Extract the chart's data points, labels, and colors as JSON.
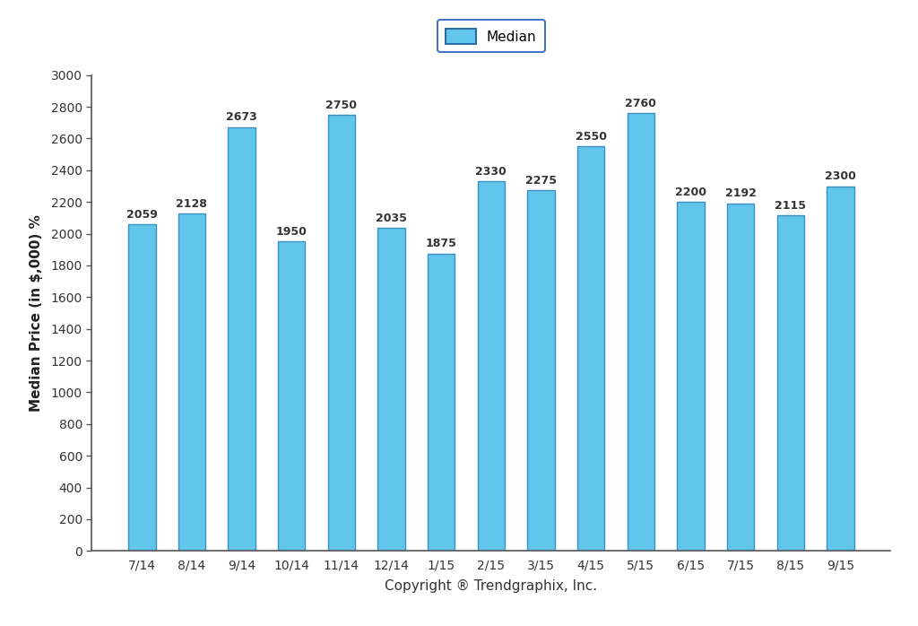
{
  "categories": [
    "7/14",
    "8/14",
    "9/14",
    "10/14",
    "11/14",
    "12/14",
    "1/15",
    "2/15",
    "3/15",
    "4/15",
    "5/15",
    "6/15",
    "7/15",
    "8/15",
    "9/15"
  ],
  "values": [
    2059,
    2128,
    2673,
    1950,
    2750,
    2035,
    1875,
    2330,
    2275,
    2550,
    2760,
    2200,
    2192,
    2115,
    2300
  ],
  "bar_color": "#62C6EC",
  "bar_edge_color": "#3A8FBF",
  "ylabel": "Median Price (in $,000) %",
  "xlabel": "Copyright ® Trendgraphix, Inc.",
  "ylim": [
    0,
    3000
  ],
  "yticks": [
    0,
    200,
    400,
    600,
    800,
    1000,
    1200,
    1400,
    1600,
    1800,
    2000,
    2200,
    2400,
    2600,
    2800,
    3000
  ],
  "legend_label": "Median",
  "legend_edge_color": "#4472c4",
  "background_color": "#ffffff",
  "bar_width": 0.55,
  "label_fontsize": 9,
  "tick_fontsize": 10,
  "ylabel_fontsize": 11,
  "xlabel_fontsize": 11
}
